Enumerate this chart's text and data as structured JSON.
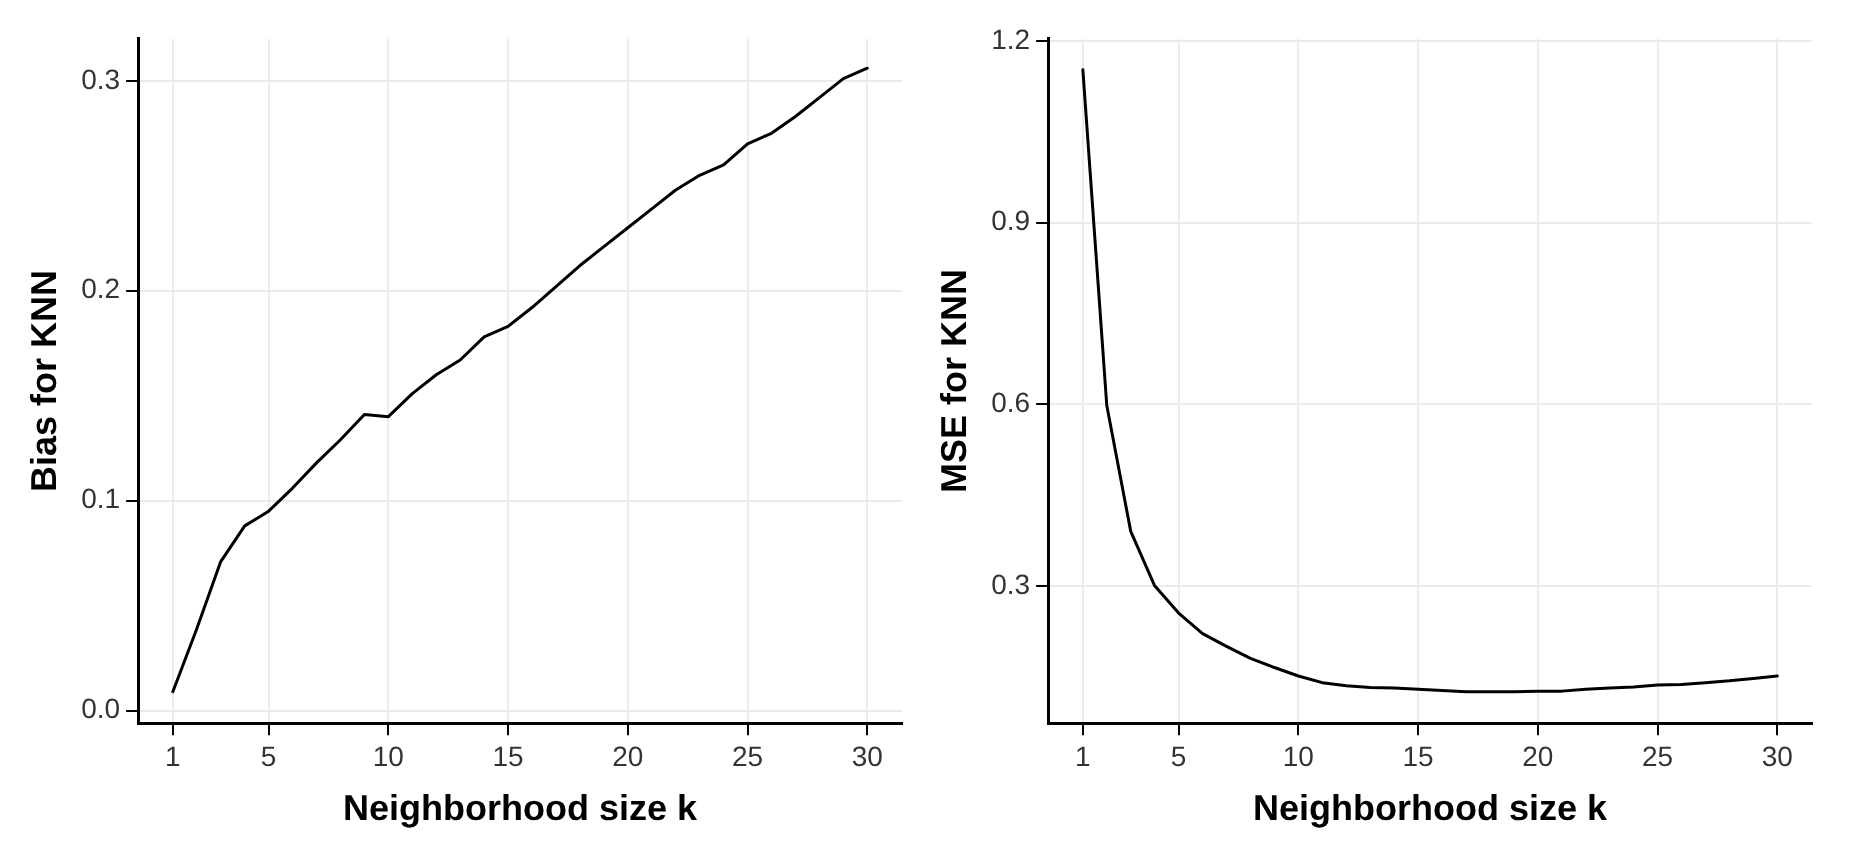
{
  "chart_data": [
    {
      "type": "line",
      "xlabel": "Neighborhood size k",
      "ylabel": "Bias for KNN",
      "x": [
        1,
        2,
        3,
        4,
        5,
        6,
        7,
        8,
        9,
        10,
        11,
        12,
        13,
        14,
        15,
        16,
        17,
        18,
        19,
        20,
        21,
        22,
        23,
        24,
        25,
        26,
        27,
        28,
        29,
        30
      ],
      "series": [
        {
          "color": "#000000",
          "values": [
            0.009,
            0.039,
            0.071,
            0.088,
            0.095,
            0.106,
            0.118,
            0.129,
            0.141,
            0.14,
            0.151,
            0.16,
            0.167,
            0.178,
            0.183,
            0.192,
            0.202,
            0.212,
            0.221,
            0.23,
            0.239,
            0.248,
            0.255,
            0.26,
            0.27,
            0.275,
            0.283,
            0.292,
            0.301,
            0.306
          ]
        }
      ],
      "xlim": [
        -0.45,
        31.45
      ],
      "xticks": [
        1,
        5,
        10,
        15,
        20,
        25,
        30
      ],
      "ylim": [
        -0.006,
        0.32
      ],
      "yticks": [
        {
          "value": 0,
          "label": "0.0"
        },
        0.1,
        0.2,
        0.3
      ],
      "grid": true,
      "legend": false,
      "marker": "none",
      "line_style": "solid"
    },
    {
      "type": "line",
      "xlabel": "Neighborhood size k",
      "ylabel": "MSE for KNN",
      "x": [
        1,
        2,
        3,
        4,
        5,
        6,
        7,
        8,
        9,
        10,
        11,
        12,
        13,
        14,
        15,
        16,
        17,
        18,
        19,
        20,
        21,
        22,
        23,
        24,
        25,
        26,
        27,
        28,
        29,
        30
      ],
      "series": [
        {
          "color": "#000000",
          "values": [
            1.153,
            0.598,
            0.39,
            0.3,
            0.255,
            0.221,
            0.2,
            0.18,
            0.165,
            0.151,
            0.14,
            0.135,
            0.132,
            0.131,
            0.129,
            0.127,
            0.125,
            0.125,
            0.125,
            0.126,
            0.126,
            0.129,
            0.131,
            0.133,
            0.136,
            0.137,
            0.14,
            0.143,
            0.147,
            0.151
          ]
        }
      ],
      "xlim": [
        -0.45,
        31.45
      ],
      "xticks": [
        1,
        5,
        10,
        15,
        20,
        25,
        30
      ],
      "ylim": [
        0.073,
        1.204
      ],
      "yticks": [
        0.3,
        0.6,
        0.9,
        1.2
      ],
      "grid": true,
      "legend": false,
      "marker": "none",
      "line_style": "solid"
    }
  ]
}
